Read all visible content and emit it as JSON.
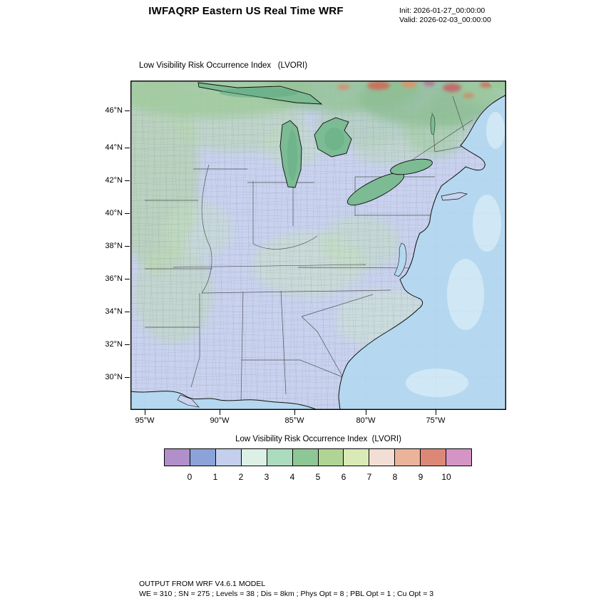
{
  "header": {
    "title": "IWFAQRP Eastern US Real Time WRF",
    "init_label": "Init: 2026-01-27_00:00:00",
    "valid_label": "Valid: 2026-02-03_00:00:00"
  },
  "map": {
    "title": "Low Visibility Risk Occurrence Index   (LVORI)",
    "lat_ticks": [
      "46°N",
      "44°N",
      "42°N",
      "40°N",
      "38°N",
      "36°N",
      "34°N",
      "32°N",
      "30°N"
    ],
    "lon_ticks": [
      "95°W",
      "90°W",
      "85°W",
      "80°W",
      "75°W"
    ]
  },
  "colorbar": {
    "label": "Low Visibility Risk Occurrence Index  (LVORI)",
    "tick_labels": [
      "0",
      "1",
      "2",
      "3",
      "4",
      "5",
      "6",
      "7",
      "8",
      "9",
      "10"
    ],
    "colors": [
      "#b18fcb",
      "#8ba3d9",
      "#c3cfec",
      "#dcf0e6",
      "#aadcbd",
      "#8dc795",
      "#b0d494",
      "#d9eab6",
      "#f3ded6",
      "#eab39a",
      "#dd8877",
      "#d494c4"
    ]
  },
  "footer": {
    "line1": "OUTPUT FROM WRF V4.6.1 MODEL",
    "line2": "WE = 310 ; SN = 275 ; Levels = 38 ; Dis = 8km ; Phys Opt = 8 ; PBL Opt = 1 ; Cu Opt = 3"
  },
  "theme": {
    "ocean": "#b5d8f0",
    "ocean-light": "#d9ecf7",
    "land": "#c9d2ee",
    "lake": "#7cbb93",
    "lake-dark": "#5ea981"
  }
}
